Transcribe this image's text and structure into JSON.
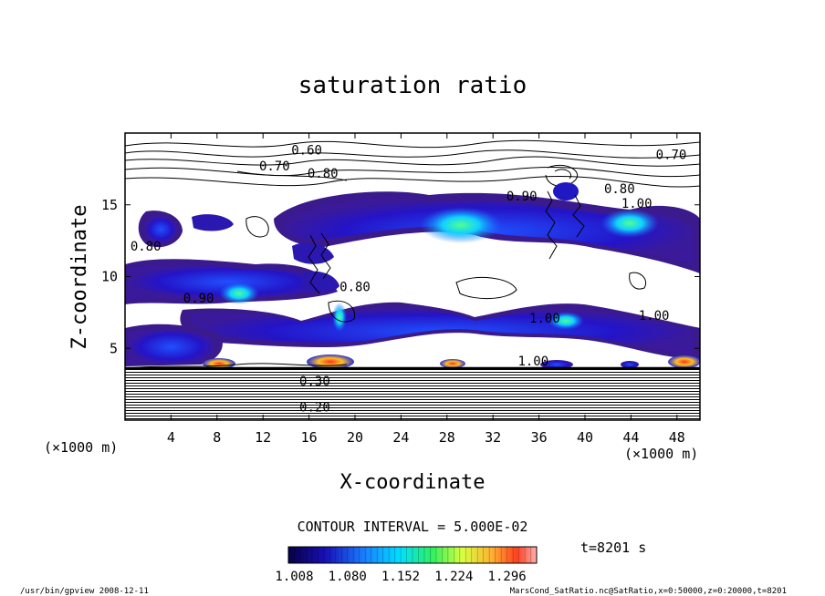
{
  "chart_data": {
    "type": "heatmap",
    "title": "saturation ratio",
    "xlabel": "X-coordinate",
    "ylabel": "Z-coordinate",
    "x_unit_label": "(×1000 m)",
    "y_unit_label": "(×1000 m)",
    "xlim": [
      0,
      50
    ],
    "ylim": [
      0,
      20
    ],
    "x_ticks": [
      "4",
      "8",
      "12",
      "16",
      "20",
      "24",
      "28",
      "32",
      "36",
      "40",
      "44",
      "48"
    ],
    "x_tick_values": [
      4,
      8,
      12,
      16,
      20,
      24,
      28,
      32,
      36,
      40,
      44,
      48
    ],
    "y_ticks": [
      "5",
      "10",
      "15"
    ],
    "y_tick_values": [
      5,
      10,
      15
    ],
    "contour_interval_label": "CONTOUR INTERVAL = 5.000E-02",
    "time_label": "t=8201 s",
    "colorbar_labels": [
      "1.008",
      "1.080",
      "1.152",
      "1.224",
      "1.296"
    ],
    "colorbar_values": [
      1.008,
      1.08,
      1.152,
      1.224,
      1.296
    ],
    "contour_labels": [
      {
        "text": "0.60",
        "x": 15.8,
        "z": 18.5
      },
      {
        "text": "0.70",
        "x": 13.0,
        "z": 17.4
      },
      {
        "text": "0.80",
        "x": 17.2,
        "z": 16.9
      },
      {
        "text": "0.70",
        "x": 47.5,
        "z": 18.2
      },
      {
        "text": "0.90",
        "x": 34.5,
        "z": 15.3
      },
      {
        "text": "0.80",
        "x": 43.0,
        "z": 15.8
      },
      {
        "text": "1.00",
        "x": 44.5,
        "z": 14.8
      },
      {
        "text": "0.80",
        "x": 1.8,
        "z": 11.8
      },
      {
        "text": "0.90",
        "x": 6.4,
        "z": 8.2
      },
      {
        "text": "0.80",
        "x": 20.0,
        "z": 9.0
      },
      {
        "text": "1.00",
        "x": 36.5,
        "z": 6.8
      },
      {
        "text": "1.00",
        "x": 46.0,
        "z": 7.0
      },
      {
        "text": "1.00",
        "x": 35.5,
        "z": 3.8
      },
      {
        "text": "0.30",
        "x": 16.5,
        "z": 2.4
      },
      {
        "text": "0.20",
        "x": 16.5,
        "z": 0.6
      }
    ],
    "grid": false,
    "legend": "bottom colorbar"
  },
  "footer": {
    "left": "/usr/bin/gpview   2008-12-11",
    "right": "MarsCond_SatRatio.nc@SatRatio,x=0:50000,z=0:20000,t=8201"
  }
}
